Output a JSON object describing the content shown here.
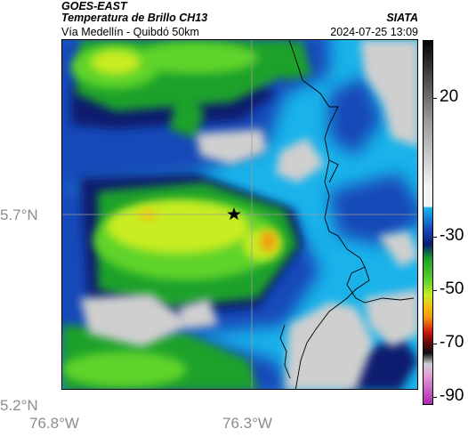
{
  "header": {
    "title_line1": "GOES-EAST",
    "title_line2": "Temperatura de Brillo CH13",
    "subtitle": "Vía Medellín - Quibdó 50km",
    "agency": "SIATA",
    "timestamp": "2024-07-25 13:09"
  },
  "axes": {
    "lat_labels": [
      "5.7°N",
      "5.2°N"
    ],
    "lon_labels": [
      "76.8°W",
      "76.3°W"
    ]
  },
  "colorbar": {
    "labels": [
      "20",
      "-30",
      "-50",
      "-70",
      "-90"
    ]
  },
  "map": {
    "marker": "star-icon",
    "colors": {
      "gray": "#cfcfcf",
      "cyan": "#19b3ea",
      "blue": "#1848b8",
      "navy": "#0a1c6e",
      "green": "#1aa12a",
      "lime": "#5fd32a",
      "yellow": "#c8ec22",
      "orange": "#f49a10"
    }
  }
}
